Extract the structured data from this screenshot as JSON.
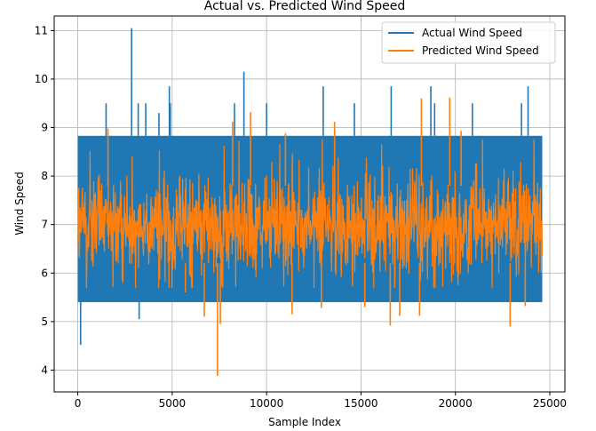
{
  "chart_data": {
    "type": "line",
    "title": "Actual vs. Predicted Wind Speed",
    "xlabel": "Sample Index",
    "ylabel": "Wind Speed",
    "xlim": [
      -1250,
      25800
    ],
    "ylim": [
      3.55,
      11.3
    ],
    "xticks": [
      0,
      5000,
      10000,
      15000,
      20000,
      25000
    ],
    "yticks": [
      4,
      5,
      6,
      7,
      8,
      9,
      10,
      11
    ],
    "grid": true,
    "legend_position": "upper right",
    "x_range": [
      0,
      24600
    ],
    "series": [
      {
        "name": "Actual Wind Speed",
        "color": "#1f77b4",
        "band": [
          5.4,
          8.83
        ],
        "spikes": [
          [
            1500,
            9.5
          ],
          [
            2850,
            11.05
          ],
          [
            3200,
            9.5
          ],
          [
            3250,
            5.05
          ],
          [
            3600,
            9.5
          ],
          [
            4300,
            9.3
          ],
          [
            4850,
            9.85
          ],
          [
            4900,
            9.5
          ],
          [
            8300,
            9.5
          ],
          [
            8800,
            10.15
          ],
          [
            10000,
            9.5
          ],
          [
            13000,
            9.85
          ],
          [
            14650,
            9.5
          ],
          [
            16600,
            9.85
          ],
          [
            18700,
            9.85
          ],
          [
            18900,
            9.5
          ],
          [
            20900,
            9.5
          ],
          [
            23500,
            9.5
          ],
          [
            23850,
            9.85
          ],
          [
            150,
            4.52
          ]
        ]
      },
      {
        "name": "Predicted Wind Speed",
        "color": "#ff7f0e",
        "center": 7.0,
        "low_spikes": [
          [
            5700,
            5.6
          ],
          [
            6700,
            5.1
          ],
          [
            7400,
            3.88
          ],
          [
            7550,
            4.95
          ],
          [
            11350,
            5.15
          ],
          [
            12900,
            5.28
          ],
          [
            15200,
            5.3
          ],
          [
            16550,
            4.92
          ],
          [
            17050,
            5.12
          ],
          [
            18100,
            5.12
          ],
          [
            22900,
            4.9
          ],
          [
            23700,
            5.32
          ]
        ],
        "high_spikes": [
          [
            1600,
            8.98
          ],
          [
            8200,
            9.12
          ],
          [
            9150,
            9.32
          ],
          [
            11000,
            8.88
          ],
          [
            13600,
            9.12
          ],
          [
            18200,
            9.6
          ],
          [
            19700,
            9.62
          ],
          [
            20300,
            8.93
          ]
        ]
      }
    ]
  }
}
